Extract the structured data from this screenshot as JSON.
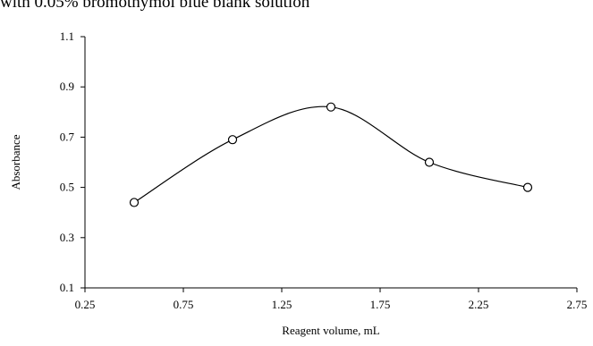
{
  "chart_data": {
    "type": "line",
    "title": "with 0.05% bromothymol blue blank solution",
    "xlabel": "Reagent volume, mL",
    "ylabel": "Absorbance",
    "xlim": [
      0.25,
      2.75
    ],
    "ylim": [
      0.1,
      1.1
    ],
    "x_ticks": [
      "0.25",
      "0.75",
      "1.25",
      "1.75",
      "2.25",
      "2.75"
    ],
    "y_ticks": [
      "0.1",
      "0.3",
      "0.5",
      "0.7",
      "0.9",
      "1.1"
    ],
    "grid": false,
    "smooth": true,
    "marker": "open-circle",
    "series": [
      {
        "x": [
          0.5,
          1.0,
          1.5,
          2.0,
          2.5
        ],
        "y": [
          0.44,
          0.69,
          0.82,
          0.6,
          0.5
        ]
      }
    ]
  }
}
